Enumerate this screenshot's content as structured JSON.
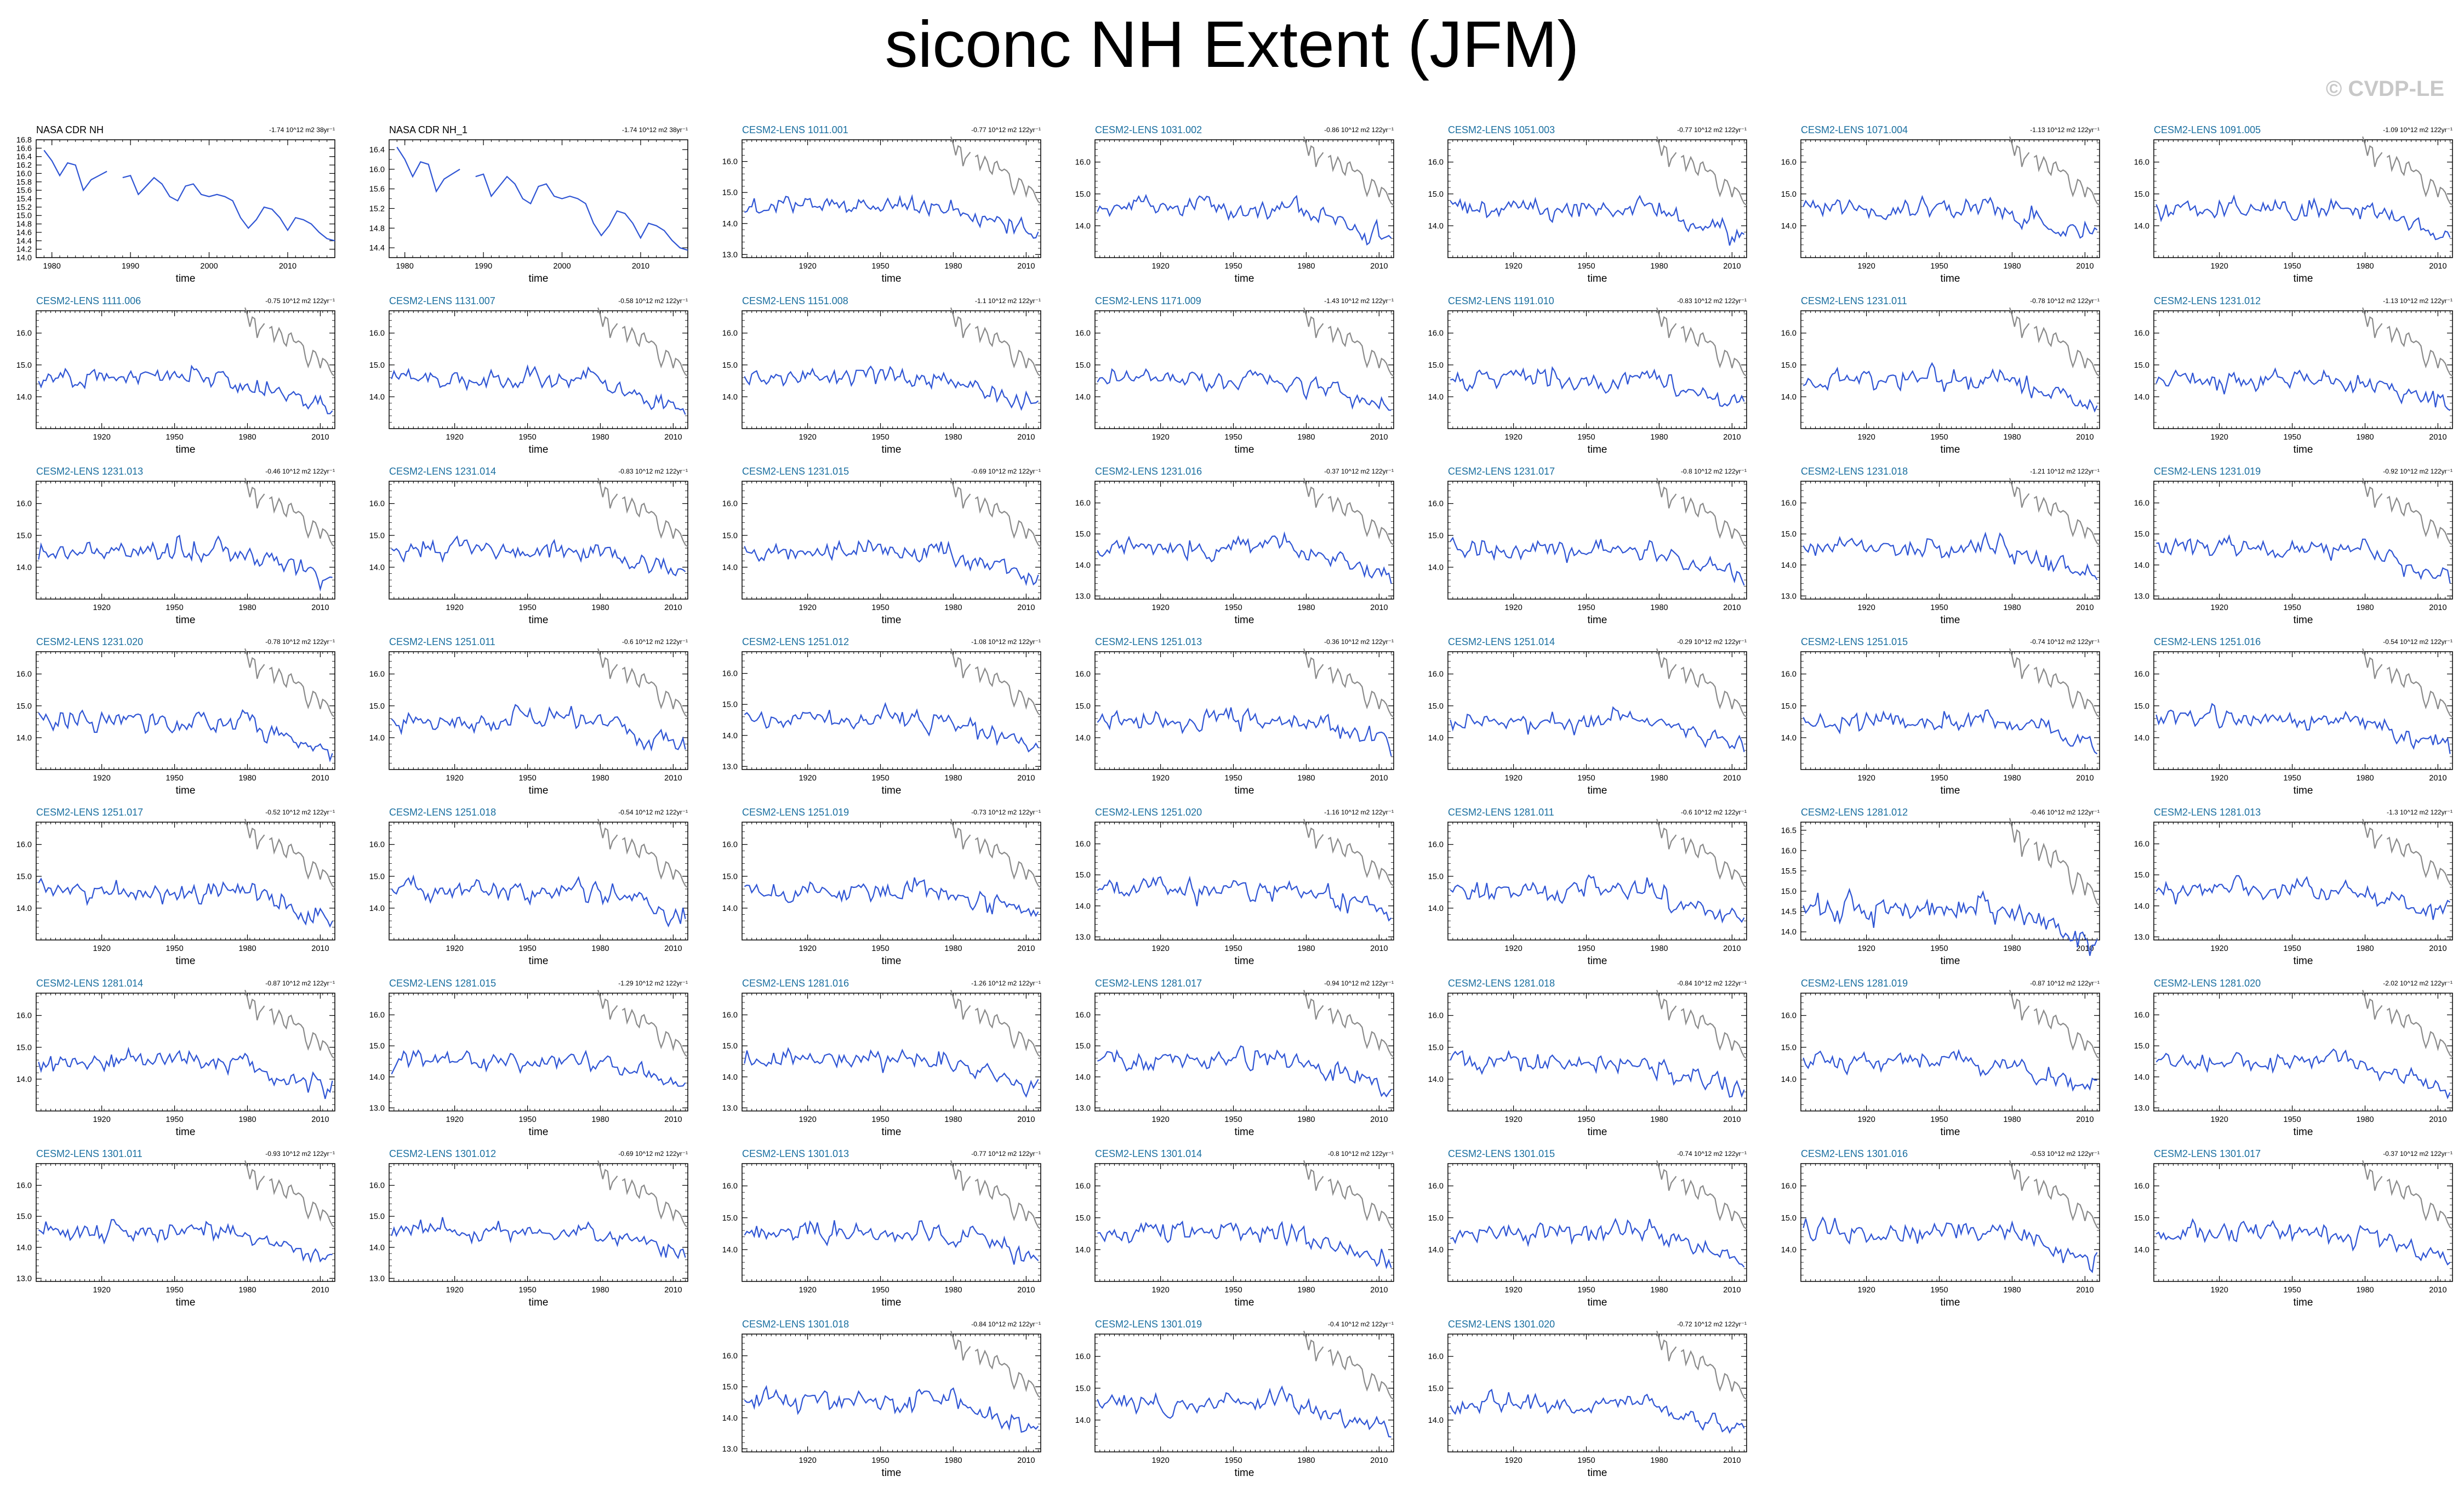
{
  "figure": {
    "title": "siconc NH Extent (JFM)",
    "watermark": "© CVDP-LE"
  },
  "colors": {
    "model_line": "#2f55d4",
    "obs_overlay_line": "#8a8a8a",
    "obs_title": "#000000",
    "model_title": "#1a6fa0"
  },
  "chart_data": {
    "type": "line",
    "xlabel": "time",
    "observations": [
      {
        "name": "NASA CDR NH",
        "trend": "-1.74 10^12 m2 38yr⁻¹",
        "xticks": [
          1980,
          1990,
          2000,
          2010
        ],
        "xlim": [
          1978,
          2016
        ],
        "yticks": [
          "14.0",
          "14.2",
          "14.4",
          "14.6",
          "14.8",
          "15.0",
          "15.2",
          "15.4",
          "15.6",
          "15.8",
          "16.0",
          "16.2",
          "16.4",
          "16.6",
          "16.8"
        ],
        "ylim": [
          14.0,
          16.8
        ],
        "x": [
          1979,
          1980,
          1981,
          1982,
          1983,
          1984,
          1985,
          1986,
          1987,
          1988,
          1989,
          1990,
          1991,
          1992,
          1993,
          1994,
          1995,
          1996,
          1997,
          1998,
          1999,
          2000,
          2001,
          2002,
          2003,
          2004,
          2005,
          2006,
          2007,
          2008,
          2009,
          2010,
          2011,
          2012,
          2013,
          2014,
          2015,
          2016
        ],
        "values": [
          16.55,
          16.3,
          15.95,
          16.25,
          16.2,
          15.6,
          15.85,
          15.95,
          16.05,
          null,
          15.9,
          15.95,
          15.5,
          15.7,
          15.9,
          15.75,
          15.45,
          15.35,
          15.7,
          15.75,
          15.5,
          15.45,
          15.5,
          15.45,
          15.35,
          14.95,
          14.7,
          14.9,
          15.2,
          15.15,
          14.95,
          14.65,
          14.95,
          14.9,
          14.8,
          14.6,
          14.45,
          14.4
        ]
      },
      {
        "name": "NASA CDR NH_1",
        "trend": "-1.74 10^12 m2 38yr⁻¹",
        "xticks": [
          1980,
          1990,
          2000,
          2010
        ],
        "xlim": [
          1978,
          2016
        ],
        "yticks": [
          "14.4",
          "14.8",
          "15.2",
          "15.6",
          "16.0",
          "16.4"
        ],
        "ylim": [
          14.2,
          16.6
        ],
        "x": [
          1979,
          1980,
          1981,
          1982,
          1983,
          1984,
          1985,
          1986,
          1987,
          1988,
          1989,
          1990,
          1991,
          1992,
          1993,
          1994,
          1995,
          1996,
          1997,
          1998,
          1999,
          2000,
          2001,
          2002,
          2003,
          2004,
          2005,
          2006,
          2007,
          2008,
          2009,
          2010,
          2011,
          2012,
          2013,
          2014,
          2015,
          2016
        ],
        "values": [
          16.45,
          16.2,
          15.85,
          16.15,
          16.1,
          15.55,
          15.8,
          15.9,
          16.0,
          null,
          15.85,
          15.9,
          15.45,
          15.65,
          15.85,
          15.7,
          15.4,
          15.3,
          15.65,
          15.7,
          15.45,
          15.4,
          15.45,
          15.4,
          15.3,
          14.9,
          14.65,
          14.85,
          15.15,
          15.1,
          14.9,
          14.6,
          14.9,
          14.85,
          14.75,
          14.55,
          14.4,
          14.35
        ]
      }
    ],
    "members": [
      {
        "name": "CESM2-LENS 1011.001",
        "trend": "-0.77 10^12 m2 122yr⁻¹",
        "yticks": [
          "13.0",
          "14.0",
          "15.0",
          "16.0"
        ],
        "ylim": [
          12.9,
          16.7
        ],
        "seed": 1
      },
      {
        "name": "CESM2-LENS 1031.002",
        "trend": "-0.86 10^12 m2 122yr⁻¹",
        "yticks": [
          "14.0",
          "15.0",
          "16.0"
        ],
        "ylim": [
          13.0,
          16.7
        ],
        "seed": 2
      },
      {
        "name": "CESM2-LENS 1051.003",
        "trend": "-0.77 10^12 m2 122yr⁻¹",
        "yticks": [
          "14.0",
          "15.0",
          "16.0"
        ],
        "ylim": [
          13.0,
          16.7
        ],
        "seed": 3
      },
      {
        "name": "CESM2-LENS 1071.004",
        "trend": "-1.13 10^12 m2 122yr⁻¹",
        "yticks": [
          "14.0",
          "15.0",
          "16.0"
        ],
        "ylim": [
          13.0,
          16.7
        ],
        "seed": 4
      },
      {
        "name": "CESM2-LENS 1091.005",
        "trend": "-1.09 10^12 m2 122yr⁻¹",
        "yticks": [
          "14.0",
          "15.0",
          "16.0"
        ],
        "ylim": [
          13.0,
          16.7
        ],
        "seed": 5
      },
      {
        "name": "CESM2-LENS 1111.006",
        "trend": "-0.75 10^12 m2 122yr⁻¹",
        "yticks": [
          "14.0",
          "15.0",
          "16.0"
        ],
        "ylim": [
          13.0,
          16.7
        ],
        "seed": 6
      },
      {
        "name": "CESM2-LENS 1131.007",
        "trend": "-0.58 10^12 m2 122yr⁻¹",
        "yticks": [
          "14.0",
          "15.0",
          "16.0"
        ],
        "ylim": [
          13.0,
          16.7
        ],
        "seed": 7
      },
      {
        "name": "CESM2-LENS 1151.008",
        "trend": "-1.1 10^12 m2 122yr⁻¹",
        "yticks": [
          "14.0",
          "15.0",
          "16.0"
        ],
        "ylim": [
          13.0,
          16.7
        ],
        "seed": 8
      },
      {
        "name": "CESM2-LENS 1171.009",
        "trend": "-1.43 10^12 m2 122yr⁻¹",
        "yticks": [
          "14.0",
          "15.0",
          "16.0"
        ],
        "ylim": [
          13.0,
          16.7
        ],
        "seed": 9
      },
      {
        "name": "CESM2-LENS 1191.010",
        "trend": "-0.83 10^12 m2 122yr⁻¹",
        "yticks": [
          "14.0",
          "15.0",
          "16.0"
        ],
        "ylim": [
          13.0,
          16.7
        ],
        "seed": 10
      },
      {
        "name": "CESM2-LENS 1231.011",
        "trend": "-0.78 10^12 m2 122yr⁻¹",
        "yticks": [
          "14.0",
          "15.0",
          "16.0"
        ],
        "ylim": [
          13.0,
          16.7
        ],
        "seed": 11
      },
      {
        "name": "CESM2-LENS 1231.012",
        "trend": "-1.13 10^12 m2 122yr⁻¹",
        "yticks": [
          "14.0",
          "15.0",
          "16.0"
        ],
        "ylim": [
          13.0,
          16.7
        ],
        "seed": 12
      },
      {
        "name": "CESM2-LENS 1231.013",
        "trend": "-0.46 10^12 m2 122yr⁻¹",
        "yticks": [
          "14.0",
          "15.0",
          "16.0"
        ],
        "ylim": [
          13.0,
          16.7
        ],
        "seed": 13
      },
      {
        "name": "CESM2-LENS 1231.014",
        "trend": "-0.83 10^12 m2 122yr⁻¹",
        "yticks": [
          "14.0",
          "15.0",
          "16.0"
        ],
        "ylim": [
          13.0,
          16.7
        ],
        "seed": 14
      },
      {
        "name": "CESM2-LENS 1231.015",
        "trend": "-0.69 10^12 m2 122yr⁻¹",
        "yticks": [
          "14.0",
          "15.0",
          "16.0"
        ],
        "ylim": [
          13.0,
          16.7
        ],
        "seed": 15
      },
      {
        "name": "CESM2-LENS 1231.016",
        "trend": "-0.37 10^12 m2 122yr⁻¹",
        "yticks": [
          "13.0",
          "14.0",
          "15.0",
          "16.0"
        ],
        "ylim": [
          12.9,
          16.7
        ],
        "seed": 16
      },
      {
        "name": "CESM2-LENS 1231.017",
        "trend": "-0.8 10^12 m2 122yr⁻¹",
        "yticks": [
          "14.0",
          "15.0",
          "16.0"
        ],
        "ylim": [
          13.0,
          16.7
        ],
        "seed": 17
      },
      {
        "name": "CESM2-LENS 1231.018",
        "trend": "-1.21 10^12 m2 122yr⁻¹",
        "yticks": [
          "13.0",
          "14.0",
          "15.0",
          "16.0"
        ],
        "ylim": [
          12.9,
          16.7
        ],
        "seed": 18
      },
      {
        "name": "CESM2-LENS 1231.019",
        "trend": "-0.92 10^12 m2 122yr⁻¹",
        "yticks": [
          "13.0",
          "14.0",
          "15.0",
          "16.0"
        ],
        "ylim": [
          12.9,
          16.7
        ],
        "seed": 19
      },
      {
        "name": "CESM2-LENS 1231.020",
        "trend": "-0.78 10^12 m2 122yr⁻¹",
        "yticks": [
          "14.0",
          "15.0",
          "16.0"
        ],
        "ylim": [
          13.0,
          16.7
        ],
        "seed": 20
      },
      {
        "name": "CESM2-LENS 1251.011",
        "trend": "-0.6 10^12 m2 122yr⁻¹",
        "yticks": [
          "14.0",
          "15.0",
          "16.0"
        ],
        "ylim": [
          13.0,
          16.7
        ],
        "seed": 21
      },
      {
        "name": "CESM2-LENS 1251.012",
        "trend": "-1.08 10^12 m2 122yr⁻¹",
        "yticks": [
          "13.0",
          "14.0",
          "15.0",
          "16.0"
        ],
        "ylim": [
          12.9,
          16.7
        ],
        "seed": 22
      },
      {
        "name": "CESM2-LENS 1251.013",
        "trend": "-0.36 10^12 m2 122yr⁻¹",
        "yticks": [
          "14.0",
          "15.0",
          "16.0"
        ],
        "ylim": [
          13.0,
          16.7
        ],
        "seed": 23
      },
      {
        "name": "CESM2-LENS 1251.014",
        "trend": "-0.29 10^12 m2 122yr⁻¹",
        "yticks": [
          "14.0",
          "15.0",
          "16.0"
        ],
        "ylim": [
          13.0,
          16.7
        ],
        "seed": 24
      },
      {
        "name": "CESM2-LENS 1251.015",
        "trend": "-0.74 10^12 m2 122yr⁻¹",
        "yticks": [
          "14.0",
          "15.0",
          "16.0"
        ],
        "ylim": [
          13.0,
          16.7
        ],
        "seed": 25
      },
      {
        "name": "CESM2-LENS 1251.016",
        "trend": "-0.54 10^12 m2 122yr⁻¹",
        "yticks": [
          "14.0",
          "15.0",
          "16.0"
        ],
        "ylim": [
          13.0,
          16.7
        ],
        "seed": 26
      },
      {
        "name": "CESM2-LENS 1251.017",
        "trend": "-0.52 10^12 m2 122yr⁻¹",
        "yticks": [
          "14.0",
          "15.0",
          "16.0"
        ],
        "ylim": [
          13.0,
          16.7
        ],
        "seed": 27
      },
      {
        "name": "CESM2-LENS 1251.018",
        "trend": "-0.54 10^12 m2 122yr⁻¹",
        "yticks": [
          "14.0",
          "15.0",
          "16.0"
        ],
        "ylim": [
          13.0,
          16.7
        ],
        "seed": 28
      },
      {
        "name": "CESM2-LENS 1251.019",
        "trend": "-0.73 10^12 m2 122yr⁻¹",
        "yticks": [
          "14.0",
          "15.0",
          "16.0"
        ],
        "ylim": [
          13.0,
          16.7
        ],
        "seed": 29
      },
      {
        "name": "CESM2-LENS 1251.020",
        "trend": "-1.16 10^12 m2 122yr⁻¹",
        "yticks": [
          "13.0",
          "14.0",
          "15.0",
          "16.0"
        ],
        "ylim": [
          12.9,
          16.7
        ],
        "seed": 30
      },
      {
        "name": "CESM2-LENS 1281.011",
        "trend": "-0.6 10^12 m2 122yr⁻¹",
        "yticks": [
          "14.0",
          "15.0",
          "16.0"
        ],
        "ylim": [
          13.0,
          16.7
        ],
        "seed": 31
      },
      {
        "name": "CESM2-LENS 1281.012",
        "trend": "-0.46 10^12 m2 122yr⁻¹",
        "yticks": [
          "14.0",
          "14.5",
          "15.0",
          "15.5",
          "16.0",
          "16.5"
        ],
        "ylim": [
          13.8,
          16.7
        ],
        "seed": 32
      },
      {
        "name": "CESM2-LENS 1281.013",
        "trend": "-1.3 10^12 m2 122yr⁻¹",
        "yticks": [
          "13.0",
          "14.0",
          "15.0",
          "16.0"
        ],
        "ylim": [
          12.9,
          16.7
        ],
        "seed": 33
      },
      {
        "name": "CESM2-LENS 1281.014",
        "trend": "-0.87 10^12 m2 122yr⁻¹",
        "yticks": [
          "14.0",
          "15.0",
          "16.0"
        ],
        "ylim": [
          13.0,
          16.7
        ],
        "seed": 34
      },
      {
        "name": "CESM2-LENS 1281.015",
        "trend": "-1.29 10^12 m2 122yr⁻¹",
        "yticks": [
          "13.0",
          "14.0",
          "15.0",
          "16.0"
        ],
        "ylim": [
          12.9,
          16.7
        ],
        "seed": 35
      },
      {
        "name": "CESM2-LENS 1281.016",
        "trend": "-1.26 10^12 m2 122yr⁻¹",
        "yticks": [
          "13.0",
          "14.0",
          "15.0",
          "16.0"
        ],
        "ylim": [
          12.9,
          16.7
        ],
        "seed": 36
      },
      {
        "name": "CESM2-LENS 1281.017",
        "trend": "-0.94 10^12 m2 122yr⁻¹",
        "yticks": [
          "13.0",
          "14.0",
          "15.0",
          "16.0"
        ],
        "ylim": [
          12.9,
          16.7
        ],
        "seed": 37
      },
      {
        "name": "CESM2-LENS 1281.018",
        "trend": "-0.84 10^12 m2 122yr⁻¹",
        "yticks": [
          "14.0",
          "15.0",
          "16.0"
        ],
        "ylim": [
          13.0,
          16.7
        ],
        "seed": 38
      },
      {
        "name": "CESM2-LENS 1281.019",
        "trend": "-0.87 10^12 m2 122yr⁻¹",
        "yticks": [
          "14.0",
          "15.0",
          "16.0"
        ],
        "ylim": [
          13.0,
          16.7
        ],
        "seed": 39
      },
      {
        "name": "CESM2-LENS 1281.020",
        "trend": "-2.02 10^12 m2 122yr⁻¹",
        "yticks": [
          "13.0",
          "14.0",
          "15.0",
          "16.0"
        ],
        "ylim": [
          12.9,
          16.7
        ],
        "seed": 40
      },
      {
        "name": "CESM2-LENS 1301.011",
        "trend": "-0.93 10^12 m2 122yr⁻¹",
        "yticks": [
          "13.0",
          "14.0",
          "15.0",
          "16.0"
        ],
        "ylim": [
          12.9,
          16.7
        ],
        "seed": 41
      },
      {
        "name": "CESM2-LENS 1301.012",
        "trend": "-0.69 10^12 m2 122yr⁻¹",
        "yticks": [
          "13.0",
          "14.0",
          "15.0",
          "16.0"
        ],
        "ylim": [
          12.9,
          16.7
        ],
        "seed": 42
      },
      {
        "name": "CESM2-LENS 1301.013",
        "trend": "-0.77 10^12 m2 122yr⁻¹",
        "yticks": [
          "14.0",
          "15.0",
          "16.0"
        ],
        "ylim": [
          13.0,
          16.7
        ],
        "seed": 43
      },
      {
        "name": "CESM2-LENS 1301.014",
        "trend": "-0.8 10^12 m2 122yr⁻¹",
        "yticks": [
          "14.0",
          "15.0",
          "16.0"
        ],
        "ylim": [
          13.0,
          16.7
        ],
        "seed": 44
      },
      {
        "name": "CESM2-LENS 1301.015",
        "trend": "-0.74 10^12 m2 122yr⁻¹",
        "yticks": [
          "14.0",
          "15.0",
          "16.0"
        ],
        "ylim": [
          13.0,
          16.7
        ],
        "seed": 45
      },
      {
        "name": "CESM2-LENS 1301.016",
        "trend": "-0.53 10^12 m2 122yr⁻¹",
        "yticks": [
          "14.0",
          "15.0",
          "16.0"
        ],
        "ylim": [
          13.0,
          16.7
        ],
        "seed": 46
      },
      {
        "name": "CESM2-LENS 1301.017",
        "trend": "-0.37 10^12 m2 122yr⁻¹",
        "yticks": [
          "14.0",
          "15.0",
          "16.0"
        ],
        "ylim": [
          13.0,
          16.7
        ],
        "seed": 47
      },
      {
        "name": "CESM2-LENS 1301.018",
        "trend": "-0.84 10^12 m2 122yr⁻¹",
        "yticks": [
          "13.0",
          "14.0",
          "15.0",
          "16.0"
        ],
        "ylim": [
          12.9,
          16.7
        ],
        "seed": 48
      },
      {
        "name": "CESM2-LENS 1301.019",
        "trend": "-0.4 10^12 m2 122yr⁻¹",
        "yticks": [
          "14.0",
          "15.0",
          "16.0"
        ],
        "ylim": [
          13.0,
          16.7
        ],
        "seed": 49
      },
      {
        "name": "CESM2-LENS 1301.020",
        "trend": "-0.72 10^12 m2 122yr⁻¹",
        "yticks": [
          "14.0",
          "15.0",
          "16.0"
        ],
        "ylim": [
          13.0,
          16.7
        ],
        "seed": 50
      }
    ],
    "member_xticks": [
      1920,
      1950,
      1980,
      2010
    ],
    "member_xlim": [
      1893,
      2016
    ],
    "member_years": [
      1894,
      2015
    ]
  }
}
